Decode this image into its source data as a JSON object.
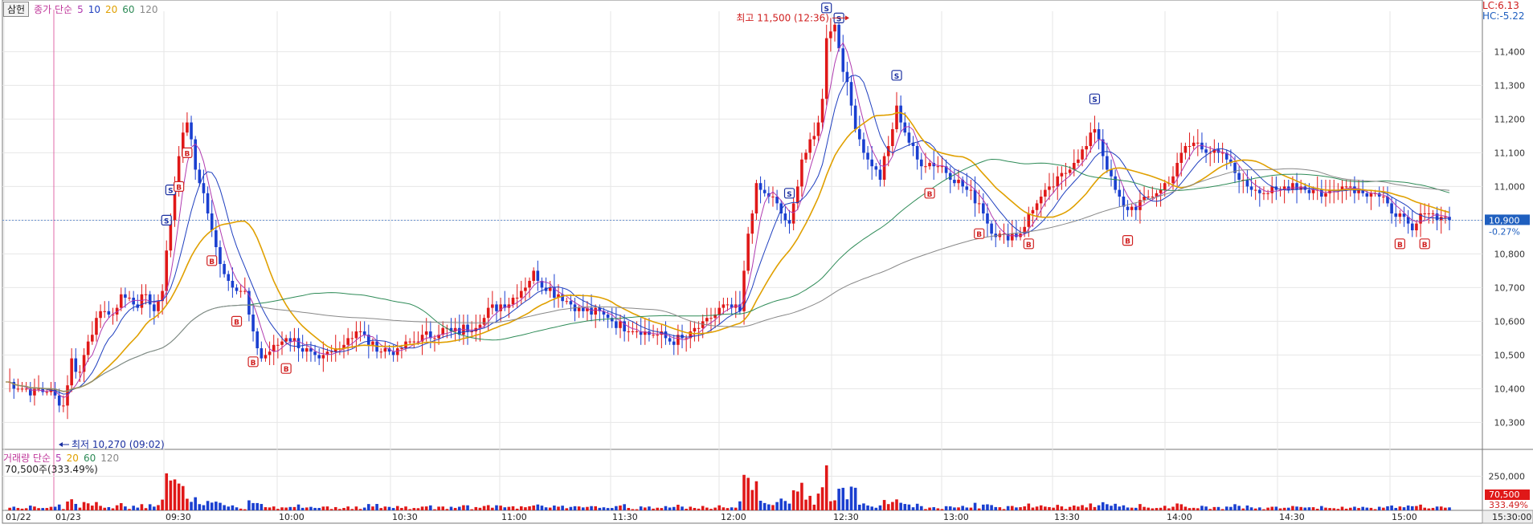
{
  "toolbar": {
    "badge_label": "삼헌",
    "price_legend": "종가 단순",
    "ma_periods": [
      {
        "label": "5",
        "color": "#b03ab0"
      },
      {
        "label": "10",
        "color": "#1f3fbf"
      },
      {
        "label": "20",
        "color": "#e0a000"
      },
      {
        "label": "60",
        "color": "#2e8b57"
      },
      {
        "label": "120",
        "color": "#888888"
      }
    ]
  },
  "lc_hc": {
    "lc": "LC:6.13",
    "hc": "HC:-5.22"
  },
  "chart_data": {
    "type": "candlestick",
    "ylim": [
      10220,
      11520
    ],
    "y_ticks": [
      10300,
      10400,
      10500,
      10600,
      10700,
      10800,
      10900,
      11000,
      11100,
      11200,
      11300,
      11400
    ],
    "y_tick_labels": [
      "10,300",
      "10,400",
      "10,500",
      "10,600",
      "10,700",
      "10,800",
      "10,900",
      "11,000",
      "11,100",
      "11,200",
      "11,300",
      "11,400"
    ],
    "x_labels": [
      "01/22",
      "01/23",
      "09:30",
      "10:00",
      "10:30",
      "11:00",
      "11:30",
      "12:00",
      "12:30",
      "13:00",
      "13:30",
      "14:00",
      "14:30",
      "15:00",
      "15:30:00"
    ],
    "current_price": {
      "label": "10,900",
      "change": "-0.27%",
      "value": 10900
    },
    "high_annotation": {
      "label": "최고 11,500 (12:36)",
      "value": 11500
    },
    "low_annotation": {
      "label": "최저 10,270 (09:02)",
      "value": 10270
    },
    "close_path": [
      [
        0,
        10420
      ],
      [
        6,
        10390
      ],
      [
        10,
        10400
      ],
      [
        14,
        10350
      ],
      [
        16,
        10480
      ],
      [
        18,
        10450
      ],
      [
        20,
        10550
      ],
      [
        22,
        10600
      ],
      [
        24,
        10640
      ],
      [
        26,
        10610
      ],
      [
        28,
        10680
      ],
      [
        30,
        10660
      ],
      [
        32,
        10650
      ],
      [
        34,
        10680
      ],
      [
        36,
        10630
      ],
      [
        38,
        10700
      ],
      [
        40,
        10900
      ],
      [
        42,
        11100
      ],
      [
        44,
        11200
      ],
      [
        46,
        11050
      ],
      [
        48,
        10980
      ],
      [
        50,
        10860
      ],
      [
        52,
        10780
      ],
      [
        54,
        10720
      ],
      [
        56,
        10700
      ],
      [
        58,
        10680
      ],
      [
        60,
        10560
      ],
      [
        62,
        10490
      ],
      [
        65,
        10520
      ],
      [
        68,
        10560
      ],
      [
        72,
        10520
      ],
      [
        76,
        10480
      ],
      [
        80,
        10520
      ],
      [
        85,
        10570
      ],
      [
        90,
        10520
      ],
      [
        95,
        10510
      ],
      [
        100,
        10550
      ],
      [
        105,
        10570
      ],
      [
        110,
        10570
      ],
      [
        115,
        10600
      ],
      [
        118,
        10640
      ],
      [
        122,
        10660
      ],
      [
        126,
        10710
      ],
      [
        128,
        10740
      ],
      [
        131,
        10700
      ],
      [
        134,
        10680
      ],
      [
        137,
        10650
      ],
      [
        140,
        10630
      ],
      [
        145,
        10620
      ],
      [
        150,
        10580
      ],
      [
        155,
        10570
      ],
      [
        158,
        10560
      ],
      [
        162,
        10540
      ],
      [
        166,
        10560
      ],
      [
        170,
        10600
      ],
      [
        174,
        10640
      ],
      [
        178,
        10630
      ],
      [
        180,
        10860
      ],
      [
        182,
        11000
      ],
      [
        186,
        10960
      ],
      [
        190,
        10880
      ],
      [
        193,
        11080
      ],
      [
        196,
        11150
      ],
      [
        198,
        11250
      ],
      [
        199,
        11450
      ],
      [
        201,
        11480
      ],
      [
        203,
        11350
      ],
      [
        206,
        11180
      ],
      [
        209,
        11080
      ],
      [
        212,
        11030
      ],
      [
        214,
        11120
      ],
      [
        216,
        11230
      ],
      [
        218,
        11160
      ],
      [
        221,
        11080
      ],
      [
        224,
        11070
      ],
      [
        228,
        11050
      ],
      [
        232,
        11000
      ],
      [
        236,
        10950
      ],
      [
        239,
        10870
      ],
      [
        242,
        10850
      ],
      [
        246,
        10860
      ],
      [
        250,
        10960
      ],
      [
        254,
        11000
      ],
      [
        258,
        11060
      ],
      [
        262,
        11120
      ],
      [
        264,
        11180
      ],
      [
        266,
        11100
      ],
      [
        268,
        11020
      ],
      [
        271,
        10930
      ],
      [
        275,
        10950
      ],
      [
        279,
        10980
      ],
      [
        283,
        11030
      ],
      [
        286,
        11120
      ],
      [
        289,
        11130
      ],
      [
        292,
        11100
      ],
      [
        296,
        11080
      ],
      [
        300,
        11010
      ],
      [
        304,
        10990
      ],
      [
        308,
        10980
      ],
      [
        312,
        11010
      ],
      [
        316,
        10990
      ],
      [
        320,
        10980
      ],
      [
        324,
        11010
      ],
      [
        328,
        10990
      ],
      [
        332,
        10980
      ],
      [
        335,
        10940
      ],
      [
        338,
        10910
      ],
      [
        341,
        10860
      ],
      [
        344,
        10930
      ],
      [
        347,
        10910
      ],
      [
        350,
        10910
      ]
    ],
    "volume": {
      "label": "거래량 단순",
      "info": "70,500주(333.49%)",
      "tick_label": "250,000",
      "last_label": "70,500",
      "last_pct": "333.49%",
      "last_value": 70500
    }
  }
}
